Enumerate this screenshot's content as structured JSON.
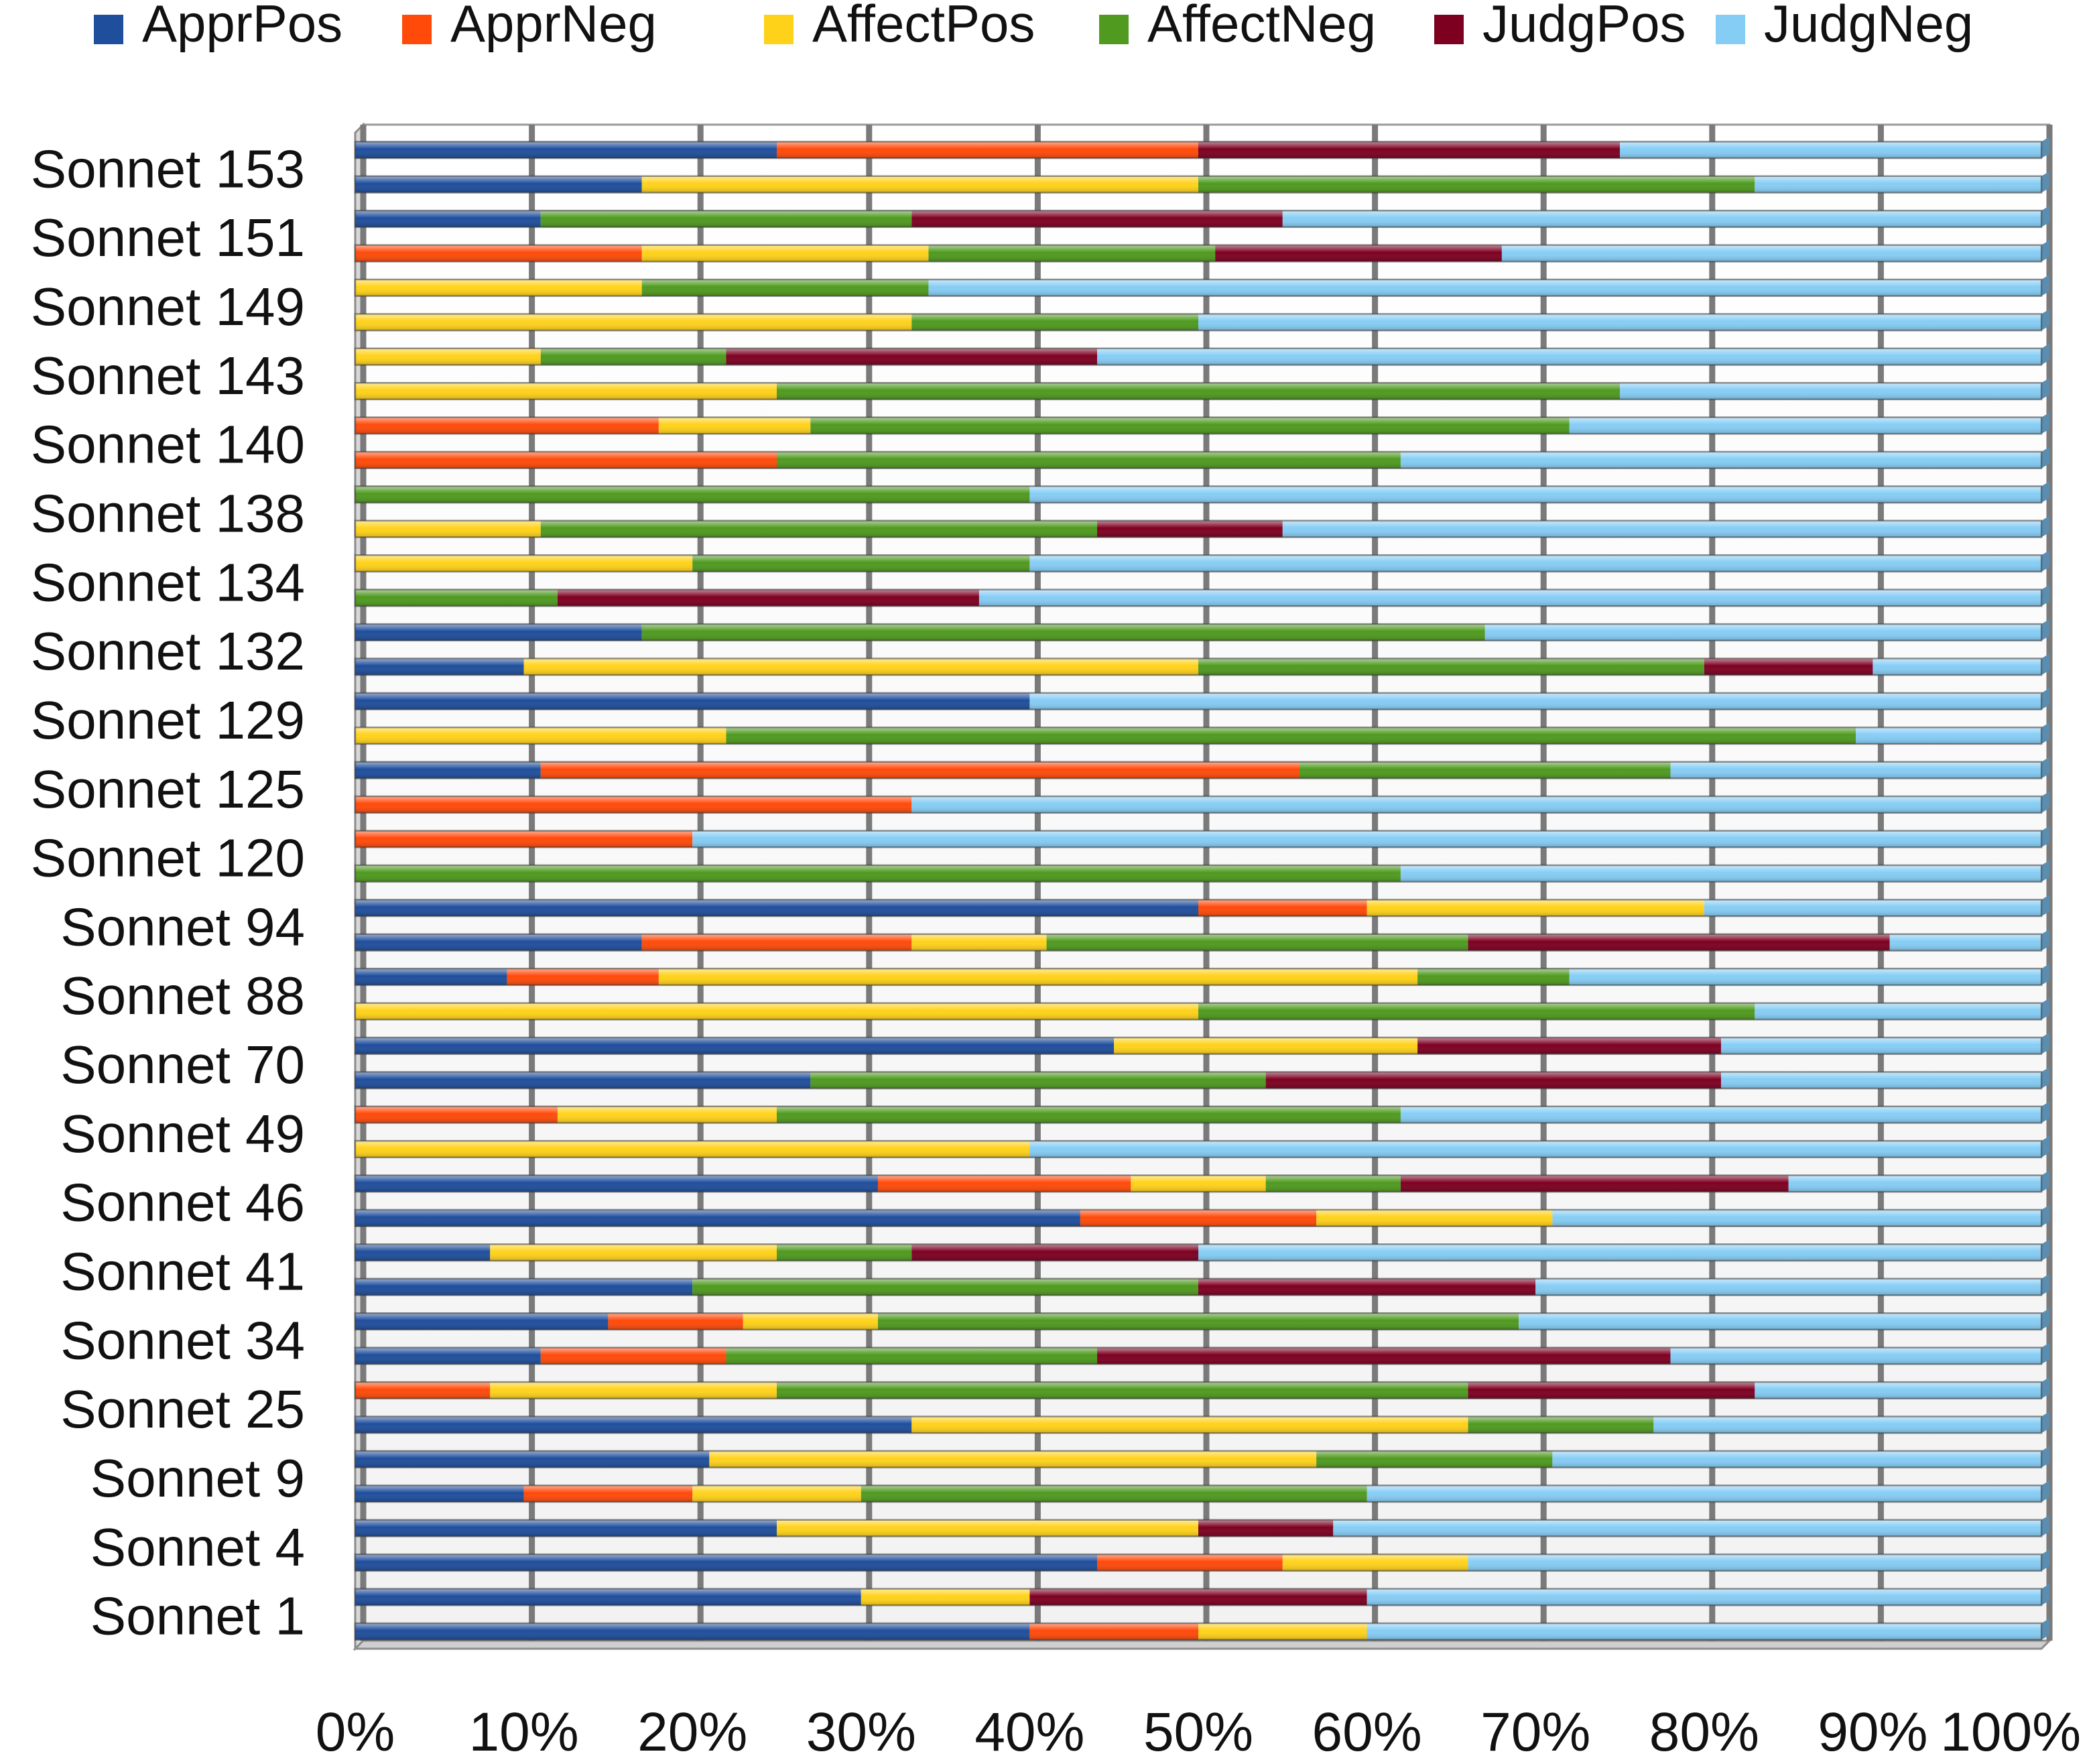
{
  "chart_data": {
    "type": "bar",
    "orientation": "horizontal",
    "stacked": "percent",
    "title": "",
    "xlabel": "",
    "ylabel": "",
    "xlim": [
      0,
      100
    ],
    "x_ticks": [
      "0%",
      "10%",
      "20%",
      "30%",
      "40%",
      "50%",
      "60%",
      "70%",
      "80%",
      "90%",
      "100%"
    ],
    "grid": true,
    "legend_position": "top",
    "series": [
      {
        "name": "ApprPos",
        "color": "#1f4e9c"
      },
      {
        "name": "ApprNeg",
        "color": "#ff4a0a"
      },
      {
        "name": "AffectPos",
        "color": "#ffd21a"
      },
      {
        "name": "AffectNeg",
        "color": "#4f9a1f"
      },
      {
        "name": "JudgPos",
        "color": "#7d0021"
      },
      {
        "name": "JudgNeg",
        "color": "#86cdf5"
      }
    ],
    "category_labels": [
      "Sonnet 153",
      "Sonnet 151",
      "Sonnet 149",
      "Sonnet 143",
      "Sonnet 140",
      "Sonnet 138",
      "Sonnet 134",
      "Sonnet 132",
      "Sonnet 129",
      "Sonnet 125",
      "Sonnet 120",
      "Sonnet 94",
      "Sonnet 88",
      "Sonnet 70",
      "Sonnet 49",
      "Sonnet 46",
      "Sonnet 41",
      "Sonnet 34",
      "Sonnet 25",
      "Sonnet 9",
      "Sonnet 4",
      "Sonnet 1"
    ],
    "label_note": "Bars listed top to bottom; every second bar carries a visible label, the rest are unlabeled.",
    "bars": [
      [
        25,
        25,
        0,
        0,
        25,
        25
      ],
      [
        17,
        0,
        33,
        33,
        0,
        17
      ],
      [
        11,
        0,
        0,
        22,
        22,
        45
      ],
      [
        0,
        17,
        17,
        17,
        17,
        32
      ],
      [
        0,
        0,
        17,
        17,
        0,
        66
      ],
      [
        0,
        0,
        33,
        17,
        0,
        50
      ],
      [
        0,
        0,
        11,
        11,
        22,
        56
      ],
      [
        0,
        0,
        25,
        50,
        0,
        25
      ],
      [
        0,
        18,
        9,
        45,
        0,
        28
      ],
      [
        0,
        25,
        0,
        37,
        0,
        38
      ],
      [
        0,
        0,
        0,
        40,
        0,
        60
      ],
      [
        0,
        0,
        11,
        33,
        11,
        45
      ],
      [
        0,
        0,
        20,
        20,
        0,
        60
      ],
      [
        0,
        0,
        0,
        12,
        25,
        63
      ],
      [
        17,
        0,
        0,
        50,
        0,
        33
      ],
      [
        10,
        0,
        40,
        30,
        10,
        10
      ],
      [
        40,
        0,
        0,
        0,
        0,
        60
      ],
      [
        0,
        0,
        22,
        67,
        0,
        11
      ],
      [
        11,
        45,
        0,
        22,
        0,
        22
      ],
      [
        0,
        33,
        0,
        0,
        0,
        67
      ],
      [
        0,
        20,
        0,
        0,
        0,
        80
      ],
      [
        0,
        0,
        0,
        62,
        0,
        38
      ],
      [
        50,
        10,
        20,
        0,
        0,
        20
      ],
      [
        17,
        16,
        8,
        25,
        25,
        9
      ],
      [
        9,
        9,
        45,
        9,
        0,
        28
      ],
      [
        0,
        0,
        50,
        33,
        0,
        17
      ],
      [
        45,
        0,
        18,
        0,
        18,
        19
      ],
      [
        27,
        0,
        0,
        27,
        27,
        19
      ],
      [
        0,
        12,
        13,
        37,
        0,
        38
      ],
      [
        0,
        0,
        40,
        0,
        0,
        60
      ],
      [
        31,
        15,
        8,
        8,
        23,
        15
      ],
      [
        43,
        14,
        14,
        0,
        0,
        29
      ],
      [
        8,
        0,
        17,
        8,
        17,
        50
      ],
      [
        20,
        0,
        0,
        30,
        20,
        30
      ],
      [
        15,
        8,
        8,
        38,
        0,
        31
      ],
      [
        11,
        11,
        0,
        22,
        34,
        22
      ],
      [
        0,
        8,
        17,
        41,
        17,
        17
      ],
      [
        33,
        0,
        33,
        11,
        0,
        23
      ],
      [
        21,
        0,
        36,
        14,
        0,
        29
      ],
      [
        10,
        10,
        10,
        30,
        0,
        40
      ],
      [
        25,
        0,
        25,
        0,
        8,
        42
      ],
      [
        44,
        11,
        11,
        0,
        0,
        34
      ],
      [
        30,
        0,
        10,
        0,
        20,
        40
      ],
      [
        40,
        10,
        10,
        0,
        0,
        40
      ]
    ]
  }
}
